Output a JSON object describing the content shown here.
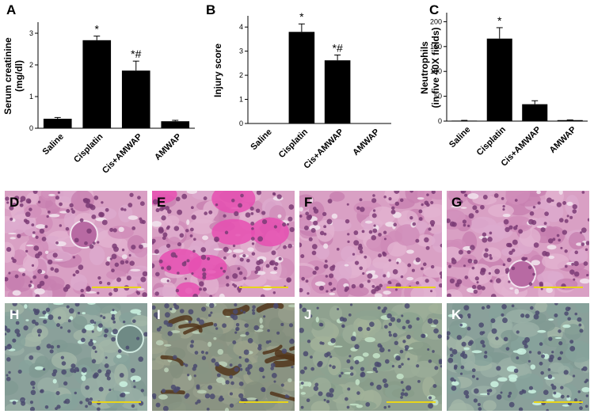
{
  "colors": {
    "bar": "#000000",
    "he_pink": "#d77fb4",
    "he_cyto": "#d9a3c6",
    "ihc_bg": "#8fa49c",
    "ihc_brown": "#4a2d17",
    "scale": "#e8d51a"
  },
  "chart_data": [
    {
      "type": "bar",
      "panel": "A",
      "ylabel": "Serum creatinine (mg/dl)",
      "ylabel_lines": [
        "Serum creatinine",
        "(mg/dl)"
      ],
      "categories": [
        "Saline",
        "Cisplatin",
        "Cis+AMWAP",
        "AMWAP"
      ],
      "values": [
        0.3,
        2.78,
        1.82,
        0.22
      ],
      "errors": [
        0.04,
        0.13,
        0.3,
        0.03
      ],
      "annotations": [
        "",
        "*",
        "*#",
        ""
      ],
      "ylim": [
        0,
        3.3
      ],
      "yticks": [
        "0",
        "1",
        "2",
        "3"
      ]
    },
    {
      "type": "bar",
      "panel": "B",
      "ylabel": "Injury score",
      "ylabel_lines": [
        "Injury score"
      ],
      "categories": [
        "Saline",
        "Cisplatin",
        "Cis+AMWAP",
        "AMWAP"
      ],
      "values": [
        0,
        3.8,
        2.62,
        0
      ],
      "errors": [
        0,
        0.33,
        0.22,
        0
      ],
      "annotations": [
        "",
        "*",
        "*#",
        ""
      ],
      "ylim": [
        0,
        4.4
      ],
      "yticks": [
        "0",
        "1",
        "2",
        "3",
        "4"
      ]
    },
    {
      "type": "bar",
      "panel": "C",
      "ylabel": "Neutrophils (in five 40X fields)",
      "ylabel_lines": [
        "Neutrophils",
        "(in five 40X fields)"
      ],
      "categories": [
        "Saline",
        "Cisplatin",
        "Cis+AMWAP",
        "AMWAP"
      ],
      "values": [
        1,
        166,
        34,
        2
      ],
      "errors": [
        0.5,
        22,
        7,
        0.5
      ],
      "annotations": [
        "",
        "*",
        "",
        ""
      ],
      "ylim": [
        0,
        215
      ],
      "yticks": [
        "0",
        "50",
        "100",
        "150",
        "200"
      ]
    }
  ],
  "micrographs": [
    {
      "letter": "D",
      "stain": "he",
      "variant": "normal"
    },
    {
      "letter": "E",
      "stain": "he",
      "variant": "cast"
    },
    {
      "letter": "F",
      "stain": "he",
      "variant": "mild"
    },
    {
      "letter": "G",
      "stain": "he",
      "variant": "normal"
    },
    {
      "letter": "H",
      "stain": "ihc",
      "variant": "normal"
    },
    {
      "letter": "I",
      "stain": "ihc",
      "variant": "brown"
    },
    {
      "letter": "J",
      "stain": "ihc",
      "variant": "mild"
    },
    {
      "letter": "K",
      "stain": "ihc",
      "variant": "normal"
    }
  ]
}
